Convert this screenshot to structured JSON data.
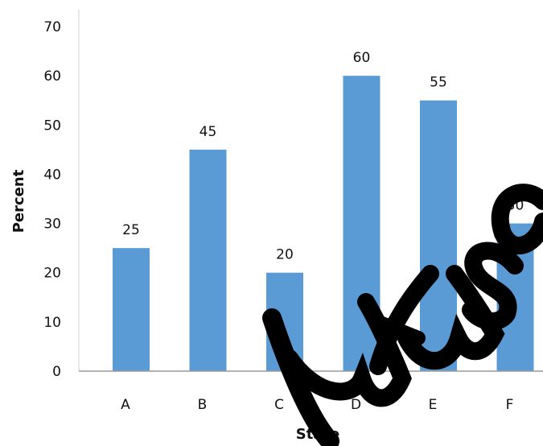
{
  "chart_data": {
    "type": "bar",
    "title": "",
    "xlabel": "State",
    "ylabel": "Percent",
    "categories": [
      "A",
      "B",
      "C",
      "D",
      "E",
      "F"
    ],
    "values": [
      25,
      45,
      20,
      60,
      55,
      30
    ],
    "data_labels": [
      "25",
      "45",
      "20",
      "60",
      "55",
      "30"
    ],
    "yticks": [
      0,
      10,
      20,
      30,
      40,
      50,
      60,
      70
    ],
    "ylim": [
      0,
      70
    ],
    "grid": false,
    "legend": "none",
    "bar_color": "#5b9bd5",
    "watermark_text": "lutusa"
  }
}
